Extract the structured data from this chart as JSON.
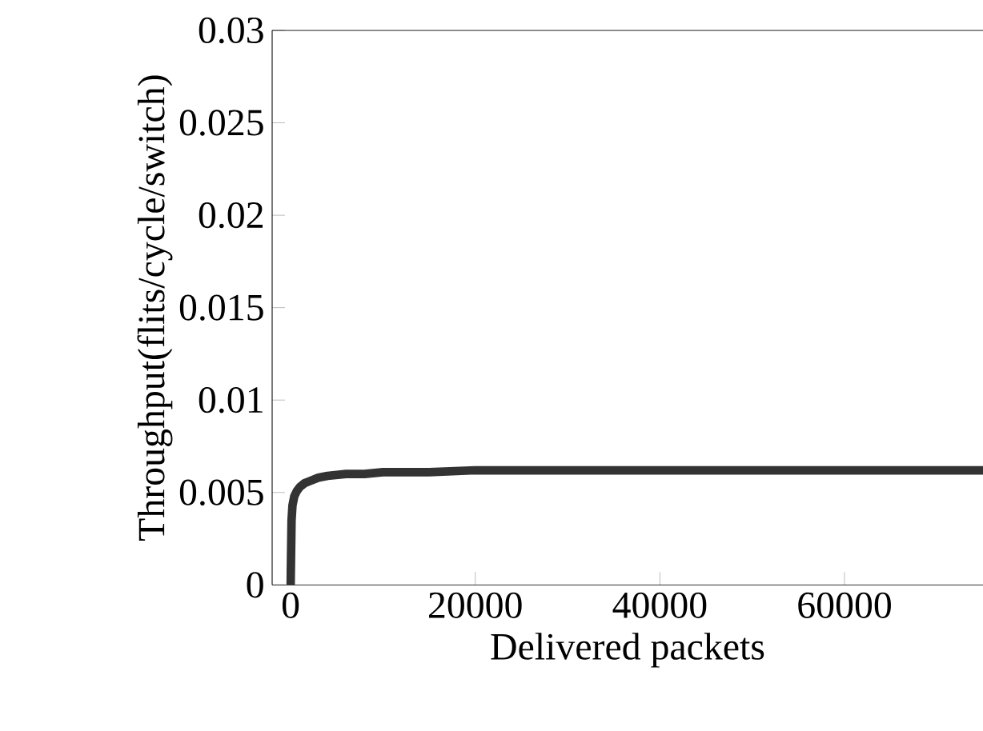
{
  "chart_data": {
    "type": "line",
    "xlabel": "Delivered packets",
    "ylabel": "Throughput(flits/cycle/switch)",
    "x": [
      0,
      100,
      200,
      400,
      700,
      1000,
      1500,
      2000,
      3000,
      4000,
      6000,
      8000,
      10000,
      15000,
      20000,
      30000,
      40000,
      50000,
      60000,
      70000,
      75000
    ],
    "series": [
      {
        "color": "#333333",
        "values": [
          0,
          0.0035,
          0.0043,
          0.0048,
          0.0051,
          0.0053,
          0.0055,
          0.0056,
          0.0058,
          0.0059,
          0.006,
          0.006,
          0.0061,
          0.0061,
          0.0062,
          0.0062,
          0.0062,
          0.0062,
          0.0062,
          0.0062,
          0.0062
        ]
      }
    ],
    "xlim": [
      -2000,
      75000
    ],
    "ylim": [
      0,
      0.03
    ],
    "xticks": [
      0,
      20000,
      40000,
      60000
    ],
    "yticks": [
      0,
      0.005,
      0.01,
      0.015,
      0.02,
      0.025,
      0.03
    ],
    "grid": false,
    "marker": "none",
    "line_style": "solid"
  }
}
